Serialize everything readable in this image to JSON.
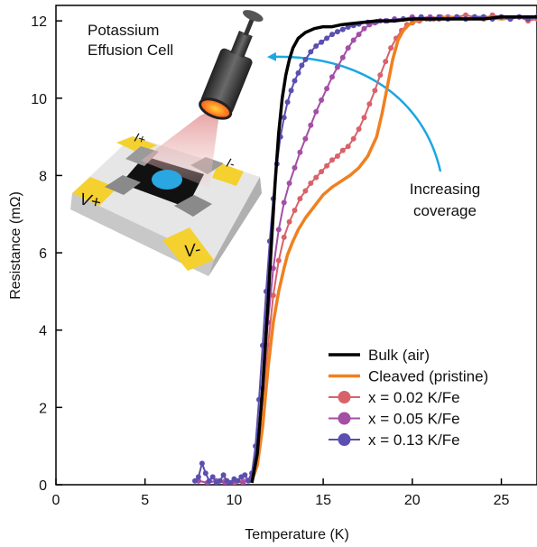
{
  "chart_data": {
    "type": "line",
    "title": "",
    "xlabel": "Temperature (K)",
    "ylabel": "Resistance (mΩ)",
    "xlim": [
      0,
      27
    ],
    "ylim": [
      0,
      12.4
    ],
    "x_ticks": [
      0,
      5,
      10,
      15,
      20,
      25
    ],
    "y_ticks": [
      0,
      2,
      4,
      6,
      8,
      10,
      12
    ],
    "grid": false,
    "legend_position": "bottom-right",
    "series": [
      {
        "name": "Bulk (air)",
        "color": "#000000",
        "markers": false,
        "x": [
          11.0,
          11.3,
          11.6,
          11.9,
          12.1,
          12.3,
          12.5,
          12.7,
          12.9,
          13.1,
          13.3,
          13.6,
          14.0,
          14.5,
          15.0,
          15.5,
          16.0,
          17.0,
          18.0,
          19.0,
          20.0,
          21.0,
          22.0,
          23.0,
          24.0,
          25.0,
          26.0,
          27.0
        ],
        "y": [
          0.05,
          0.8,
          2.5,
          4.7,
          6.3,
          7.8,
          9.1,
          10.0,
          10.6,
          11.0,
          11.3,
          11.55,
          11.7,
          11.8,
          11.85,
          11.85,
          11.9,
          11.95,
          12.0,
          12.0,
          12.05,
          12.05,
          12.05,
          12.05,
          12.05,
          12.1,
          12.1,
          12.1
        ]
      },
      {
        "name": "Cleaved (pristine)",
        "color": "#f08020",
        "markers": false,
        "x": [
          11.0,
          11.3,
          11.6,
          11.9,
          12.2,
          12.5,
          12.8,
          13.0,
          13.3,
          13.6,
          14.0,
          14.5,
          15.0,
          15.5,
          16.0,
          16.5,
          17.0,
          17.5,
          18.0,
          18.3,
          18.6,
          18.9,
          19.2,
          19.5,
          19.8,
          20.2,
          20.6,
          21.0,
          22.0,
          23.0,
          24.0,
          25.0,
          26.0,
          27.0
        ],
        "y": [
          0.1,
          0.5,
          1.5,
          3.0,
          4.2,
          5.0,
          5.6,
          5.95,
          6.3,
          6.6,
          6.9,
          7.2,
          7.5,
          7.7,
          7.85,
          8.0,
          8.2,
          8.5,
          9.0,
          9.6,
          10.3,
          11.0,
          11.5,
          11.75,
          11.9,
          12.0,
          12.05,
          12.05,
          12.1,
          12.05,
          12.1,
          12.05,
          12.1,
          12.1
        ]
      },
      {
        "name": "x = 0.02 K/Fe",
        "color": "#d9626a",
        "markers": true,
        "x": [
          8.0,
          8.5,
          9.0,
          9.5,
          10.0,
          10.5,
          11.0,
          11.3,
          11.6,
          11.9,
          12.2,
          12.5,
          12.8,
          13.1,
          13.4,
          13.7,
          14.0,
          14.3,
          14.6,
          14.9,
          15.2,
          15.5,
          15.8,
          16.1,
          16.4,
          16.7,
          17.0,
          17.3,
          17.6,
          17.9,
          18.2,
          18.5,
          18.8,
          19.1,
          19.4,
          19.7,
          20.0,
          20.4,
          20.8,
          21.2,
          21.6,
          22.0,
          22.5,
          23.0,
          23.5,
          24.0,
          24.5,
          25.0,
          25.5,
          26.0,
          26.5,
          27.0
        ],
        "y": [
          0.1,
          0.05,
          0.1,
          0.1,
          0.05,
          0.1,
          0.2,
          0.9,
          2.2,
          3.6,
          4.9,
          5.8,
          6.4,
          6.8,
          7.1,
          7.4,
          7.6,
          7.8,
          7.95,
          8.1,
          8.25,
          8.4,
          8.5,
          8.65,
          8.75,
          8.95,
          9.2,
          9.5,
          9.85,
          10.2,
          10.6,
          10.95,
          11.3,
          11.55,
          11.75,
          11.9,
          11.95,
          12.0,
          12.05,
          12.05,
          12.1,
          12.05,
          12.1,
          12.15,
          12.1,
          12.05,
          12.15,
          12.1,
          12.05,
          12.1,
          12.0,
          12.05
        ]
      },
      {
        "name": "x = 0.05 K/Fe",
        "color": "#a44fa6",
        "markers": true,
        "x": [
          8.0,
          8.5,
          9.0,
          9.5,
          10.0,
          10.5,
          11.0,
          11.3,
          11.6,
          11.9,
          12.2,
          12.5,
          12.8,
          13.1,
          13.4,
          13.7,
          14.0,
          14.3,
          14.6,
          14.9,
          15.2,
          15.5,
          15.8,
          16.1,
          16.4,
          16.7,
          17.0,
          17.3,
          17.6,
          17.9,
          18.2,
          18.6,
          19.0,
          19.5,
          20.0,
          20.5,
          21.0,
          21.5,
          22.0,
          22.5,
          23.0,
          23.5,
          24.0,
          24.5,
          25.0,
          25.5,
          26.0,
          26.5,
          27.0
        ],
        "y": [
          0.1,
          0.05,
          0.1,
          0.05,
          0.1,
          0.05,
          0.2,
          1.0,
          2.5,
          4.2,
          5.6,
          6.6,
          7.3,
          7.8,
          8.2,
          8.6,
          8.95,
          9.3,
          9.65,
          9.95,
          10.25,
          10.55,
          10.8,
          11.05,
          11.3,
          11.5,
          11.65,
          11.8,
          11.9,
          11.95,
          12.0,
          12.0,
          12.05,
          12.05,
          12.1,
          12.05,
          12.1,
          12.05,
          12.1,
          12.1,
          12.05,
          12.1,
          12.1,
          12.05,
          12.1,
          12.05,
          12.1,
          12.05,
          12.1
        ]
      },
      {
        "name": "x = 0.13 K/Fe",
        "color": "#5b4fb0",
        "markers": true,
        "x": [
          7.8,
          8.0,
          8.2,
          8.4,
          8.6,
          8.8,
          9.0,
          9.2,
          9.4,
          9.6,
          9.8,
          10.0,
          10.2,
          10.4,
          10.6,
          10.8,
          11.0,
          11.2,
          11.4,
          11.6,
          11.8,
          12.0,
          12.2,
          12.4,
          12.6,
          12.8,
          13.0,
          13.2,
          13.4,
          13.6,
          13.8,
          14.0,
          14.3,
          14.6,
          14.9,
          15.2,
          15.5,
          15.8,
          16.1,
          16.4,
          16.7,
          17.0,
          17.5,
          18.0,
          18.5,
          19.0,
          19.5,
          20.0,
          20.5,
          21.0,
          21.5,
          22.0,
          22.5,
          23.0,
          23.5,
          24.0,
          24.5,
          25.0,
          25.5,
          26.0,
          26.5,
          27.0
        ],
        "y": [
          0.1,
          0.2,
          0.55,
          0.3,
          0.1,
          0.2,
          0.05,
          0.1,
          0.25,
          0.1,
          0.05,
          0.15,
          0.1,
          0.2,
          0.25,
          0.1,
          0.3,
          1.0,
          2.2,
          3.6,
          5.0,
          6.3,
          7.4,
          8.3,
          9.0,
          9.5,
          9.9,
          10.2,
          10.45,
          10.65,
          10.85,
          11.0,
          11.2,
          11.35,
          11.45,
          11.55,
          11.65,
          11.72,
          11.78,
          11.84,
          11.88,
          11.92,
          11.96,
          11.98,
          12.0,
          12.02,
          12.05,
          12.05,
          12.1,
          12.05,
          12.1,
          12.05,
          12.1,
          12.05,
          12.1,
          12.1,
          12.05,
          12.1,
          12.05,
          12.1,
          12.05,
          12.1
        ]
      }
    ],
    "annotations": [
      {
        "id": "effusion",
        "text_lines": [
          "Potassium",
          "Effusion Cell"
        ]
      },
      {
        "id": "coverage",
        "text_lines": [
          "Increasing",
          "coverage"
        ]
      }
    ],
    "inset": {
      "contact_labels": [
        "I+",
        "I-",
        "V+",
        "V-"
      ],
      "colors": {
        "contact": "#f5d130",
        "substrate": "#e6e6e6",
        "crystal": "#111111",
        "spot": "#2aa6e0",
        "pad": "#8a8a8a"
      }
    },
    "arrow_color": "#1aa7e3"
  }
}
